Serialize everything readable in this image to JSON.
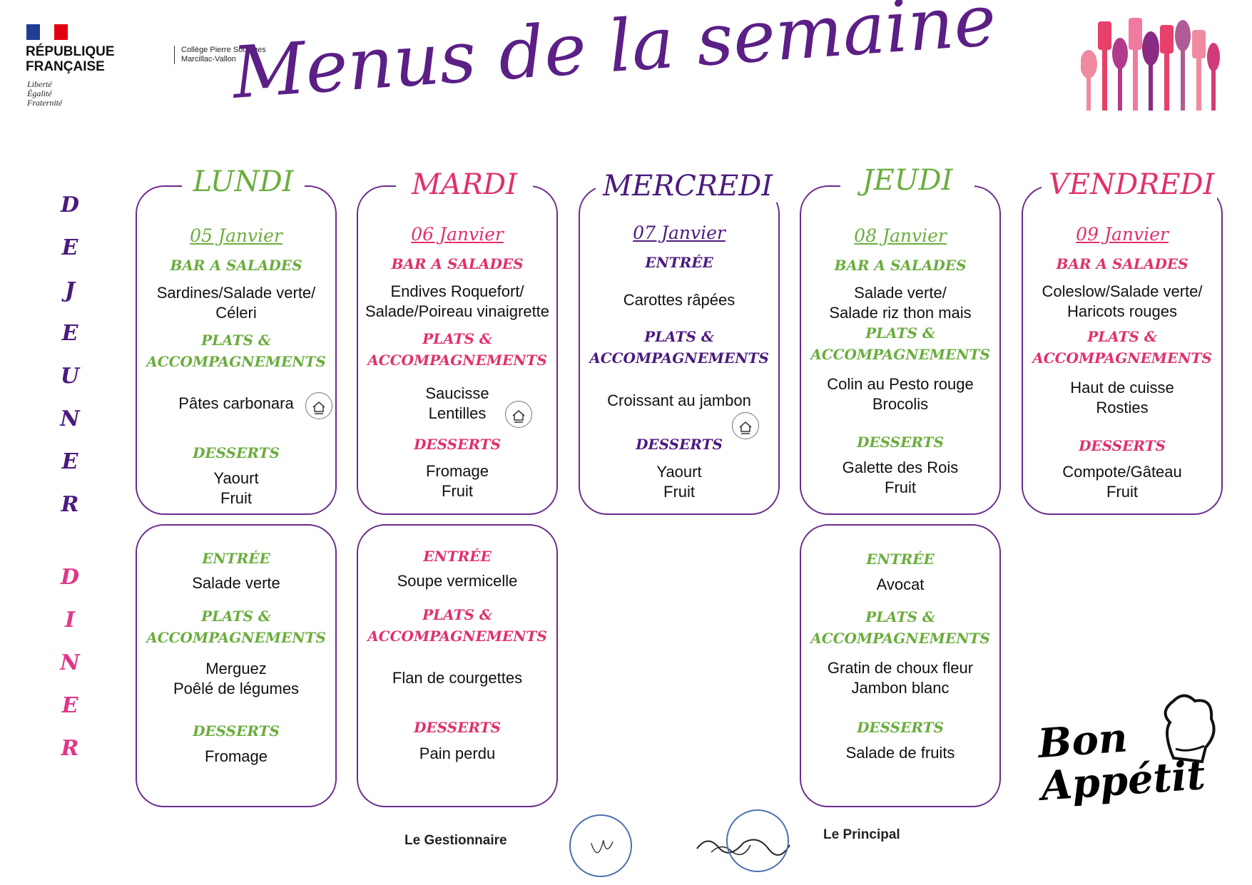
{
  "header": {
    "republique": "RÉPUBLIQUE\nFRANÇAISE",
    "motto": "Liberté\nÉgalité\nFraternité",
    "college": "Collège Pierre Soulages\nMarcillac-Vallon",
    "title": "Menus de la semaine"
  },
  "labels": {
    "dejeuner": [
      "D",
      "E",
      "J",
      "E",
      "U",
      "N",
      "E",
      "R"
    ],
    "diner": [
      "D",
      "I",
      "N",
      "E",
      "R"
    ]
  },
  "days": [
    {
      "name": "LUNDI",
      "date": "05 Janvier",
      "color": "#6aad3d"
    },
    {
      "name": "MARDI",
      "date": "06 Janvier",
      "color": "#e0306e"
    },
    {
      "name": "MERCREDI",
      "date": "07 Janvier",
      "color": "#4b1a7e"
    },
    {
      "name": "JEUDI",
      "date": "08 Janvier",
      "color": "#6aad3d"
    },
    {
      "name": "VENDREDI",
      "date": "09 Janvier",
      "color": "#e0306e"
    }
  ],
  "dejeuner": {
    "lundi": {
      "cat1": "BAR A SALADES",
      "food1": "Sardines/Salade verte/\nCéleri",
      "cat2": "PLATS &\nACCOMPAGNEMENTS",
      "food2": "Pâtes carbonara",
      "cat3": "DESSERTS",
      "food3": "Yaourt\nFruit"
    },
    "mardi": {
      "cat1": "BAR A SALADES",
      "food1": "Endives Roquefort/\nSalade/Poireau vinaigrette",
      "cat2": "PLATS &\nACCOMPAGNEMENTS",
      "food2": "Saucisse\nLentilles",
      "cat3": "DESSERTS",
      "food3": "Fromage\nFruit"
    },
    "mercredi": {
      "cat1": "ENTRÉE",
      "food1": "Carottes râpées",
      "cat2": "PLATS &\nACCOMPAGNEMENTS",
      "food2": "Croissant au jambon",
      "cat3": "DESSERTS",
      "food3": "Yaourt\nFruit"
    },
    "jeudi": {
      "cat1": "BAR A SALADES",
      "food1": "Salade verte/\nSalade riz thon mais",
      "cat2": "PLATS &\nACCOMPAGNEMENTS",
      "food2": "Colin au Pesto rouge\nBrocolis",
      "cat3": "DESSERTS",
      "food3": "Galette des Rois\nFruit"
    },
    "vendredi": {
      "cat1": "BAR A SALADES",
      "food1": "Coleslow/Salade verte/\nHaricots rouges",
      "cat2": "PLATS &\nACCOMPAGNEMENTS",
      "food2": "Haut de cuisse\nRosties",
      "cat3": "DESSERTS",
      "food3": "Compote/Gâteau\nFruit"
    }
  },
  "diner": {
    "lundi": {
      "cat1": "ENTRÉE",
      "food1": "Salade verte",
      "cat2": "PLATS &\nACCOMPAGNEMENTS",
      "food2": "Merguez\nPoêlé de légumes",
      "cat3": "DESSERTS",
      "food3": "Fromage"
    },
    "mardi": {
      "cat1": "ENTRÉE",
      "food1": "Soupe vermicelle",
      "cat2": "PLATS &\nACCOMPAGNEMENTS",
      "food2": "Flan de courgettes",
      "cat3": "DESSERTS",
      "food3": "Pain perdu"
    },
    "jeudi": {
      "cat1": "ENTRÉE",
      "food1": "Avocat",
      "cat2": "PLATS &\nACCOMPAGNEMENTS",
      "food2": "Gratin de choux fleur\nJambon blanc",
      "cat3": "DESSERTS",
      "food3": "Salade de fruits"
    }
  },
  "footer": {
    "gestionnaire": "Le Gestionnaire",
    "principal": "Le Principal",
    "bon_appetit": "Bon\nAppétit"
  }
}
